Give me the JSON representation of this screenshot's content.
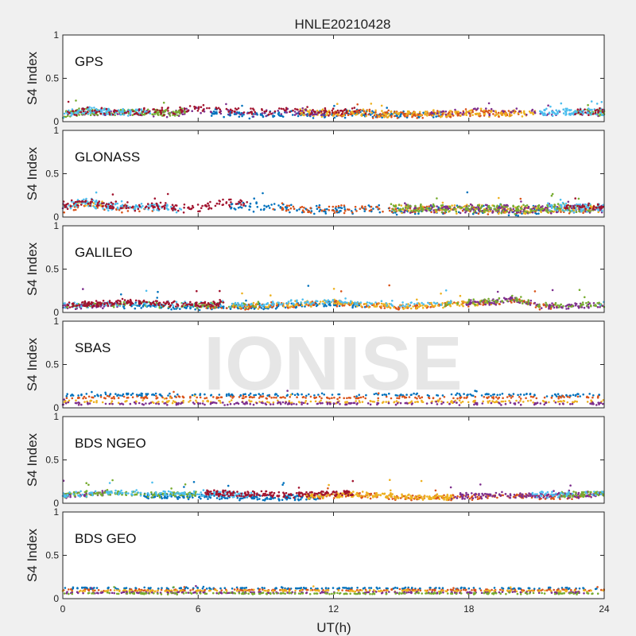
{
  "figure": {
    "title": "HNLE20210428",
    "xlabel": "UT(h)",
    "ylabel": "S4 Index",
    "watermark": "IONISE"
  },
  "colors": [
    "#0072bd",
    "#d95319",
    "#edb120",
    "#7e2f8e",
    "#77ac30",
    "#4dbeee",
    "#a2142f"
  ],
  "chart_data": [
    {
      "type": "scatter",
      "label": "GPS",
      "xlim": [
        0,
        24
      ],
      "ylim": [
        0,
        1
      ],
      "xticks": [
        0,
        6,
        12,
        18,
        24
      ],
      "yticks": [
        0,
        0.5,
        1
      ],
      "xlabel": "",
      "ylabel": "S4 Index",
      "series_count": 7,
      "baseline_s4": [
        [
          0,
          0.08
        ],
        [
          1,
          0.12
        ],
        [
          2,
          0.1
        ],
        [
          3,
          0.1
        ],
        [
          4,
          0.11
        ],
        [
          5,
          0.1
        ],
        [
          6,
          0.14
        ],
        [
          7,
          0.12
        ],
        [
          8,
          0.1
        ],
        [
          9,
          0.1
        ],
        [
          10,
          0.12
        ],
        [
          11,
          0.11
        ],
        [
          12,
          0.1
        ],
        [
          13,
          0.12
        ],
        [
          14,
          0.1
        ],
        [
          15,
          0.1
        ],
        [
          16,
          0.1
        ],
        [
          17,
          0.1
        ],
        [
          18,
          0.12
        ],
        [
          19,
          0.11
        ],
        [
          20,
          0.11
        ],
        [
          21,
          0.1
        ],
        [
          22,
          0.1
        ],
        [
          23,
          0.11
        ],
        [
          24,
          0.1
        ]
      ],
      "spread_s4": 0.05,
      "max_s4": 0.25
    },
    {
      "type": "scatter",
      "label": "GLONASS",
      "xlim": [
        0,
        24
      ],
      "ylim": [
        0,
        1
      ],
      "xticks": [
        0,
        6,
        12,
        18,
        24
      ],
      "yticks": [
        0,
        0.5,
        1
      ],
      "xlabel": "",
      "ylabel": "S4 Index",
      "series_count": 7,
      "baseline_s4": [
        [
          0,
          0.12
        ],
        [
          1,
          0.16
        ],
        [
          2,
          0.12
        ],
        [
          3,
          0.1
        ],
        [
          4,
          0.11
        ],
        [
          5,
          0.1
        ],
        [
          6,
          0.08
        ],
        [
          7,
          0.14
        ],
        [
          8,
          0.15
        ],
        [
          9,
          0.13
        ],
        [
          10,
          0.12
        ],
        [
          11,
          0.1
        ],
        [
          12,
          0.1
        ],
        [
          13,
          0.1
        ],
        [
          14,
          0.11
        ],
        [
          15,
          0.1
        ],
        [
          16,
          0.1
        ],
        [
          17,
          0.1
        ],
        [
          18,
          0.1
        ],
        [
          19,
          0.1
        ],
        [
          20,
          0.09
        ],
        [
          21,
          0.1
        ],
        [
          22,
          0.1
        ],
        [
          23,
          0.1
        ],
        [
          24,
          0.11
        ]
      ],
      "spread_s4": 0.06,
      "max_s4": 0.3
    },
    {
      "type": "scatter",
      "label": "GALILEO",
      "xlim": [
        0,
        24
      ],
      "ylim": [
        0,
        1
      ],
      "xticks": [
        0,
        6,
        12,
        18,
        24
      ],
      "yticks": [
        0,
        0.5,
        1
      ],
      "xlabel": "",
      "ylabel": "S4 Index",
      "series_count": 7,
      "baseline_s4": [
        [
          0,
          0.07
        ],
        [
          1,
          0.08
        ],
        [
          2,
          0.09
        ],
        [
          3,
          0.1
        ],
        [
          4,
          0.09
        ],
        [
          5,
          0.08
        ],
        [
          6,
          0.08
        ],
        [
          7,
          0.09
        ],
        [
          8,
          0.08
        ],
        [
          9,
          0.09
        ],
        [
          10,
          0.1
        ],
        [
          11,
          0.11
        ],
        [
          12,
          0.12
        ],
        [
          13,
          0.11
        ],
        [
          14,
          0.09
        ],
        [
          15,
          0.08
        ],
        [
          16,
          0.09
        ],
        [
          17,
          0.1
        ],
        [
          18,
          0.12
        ],
        [
          19,
          0.12
        ],
        [
          20,
          0.16
        ],
        [
          21,
          0.09
        ],
        [
          22,
          0.07
        ],
        [
          23,
          0.08
        ],
        [
          24,
          0.09
        ]
      ],
      "spread_s4": 0.04,
      "max_s4": 0.32
    },
    {
      "type": "scatter",
      "label": "SBAS",
      "xlim": [
        0,
        24
      ],
      "ylim": [
        0,
        1
      ],
      "xticks": [
        0,
        6,
        12,
        18,
        24
      ],
      "yticks": [
        0,
        0.5,
        1
      ],
      "xlabel": "",
      "ylabel": "S4 Index",
      "series_count": 4,
      "series_levels_s4": [
        0.15,
        0.12,
        0.07,
        0.05
      ],
      "spread_s4": 0.02,
      "max_s4": 0.2
    },
    {
      "type": "scatter",
      "label": "BDS NGEO",
      "xlim": [
        0,
        24
      ],
      "ylim": [
        0,
        1
      ],
      "xticks": [
        0,
        6,
        12,
        18,
        24
      ],
      "yticks": [
        0,
        0.5,
        1
      ],
      "xlabel": "",
      "ylabel": "S4 Index",
      "series_count": 7,
      "baseline_s4": [
        [
          0,
          0.09
        ],
        [
          1,
          0.1
        ],
        [
          2,
          0.12
        ],
        [
          3,
          0.11
        ],
        [
          4,
          0.1
        ],
        [
          5,
          0.1
        ],
        [
          6,
          0.1
        ],
        [
          7,
          0.1
        ],
        [
          8,
          0.09
        ],
        [
          9,
          0.09
        ],
        [
          10,
          0.08
        ],
        [
          11,
          0.09
        ],
        [
          12,
          0.1
        ],
        [
          13,
          0.11
        ],
        [
          14,
          0.1
        ],
        [
          15,
          0.08
        ],
        [
          16,
          0.08
        ],
        [
          17,
          0.08
        ],
        [
          18,
          0.09
        ],
        [
          19,
          0.09
        ],
        [
          20,
          0.1
        ],
        [
          21,
          0.09
        ],
        [
          22,
          0.09
        ],
        [
          23,
          0.1
        ],
        [
          24,
          0.12
        ]
      ],
      "spread_s4": 0.04,
      "max_s4": 0.27
    },
    {
      "type": "scatter",
      "label": "BDS GEO",
      "xlim": [
        0,
        24
      ],
      "ylim": [
        0,
        1
      ],
      "xticks": [
        0,
        6,
        12,
        18,
        24
      ],
      "yticks": [
        0,
        0.5,
        1
      ],
      "xlabel": "UT(h)",
      "ylabel": "S4 Index",
      "series_count": 5,
      "series_levels_s4": [
        0.12,
        0.1,
        0.09,
        0.07,
        0.06
      ],
      "spread_s4": 0.012,
      "max_s4": 0.15
    }
  ]
}
